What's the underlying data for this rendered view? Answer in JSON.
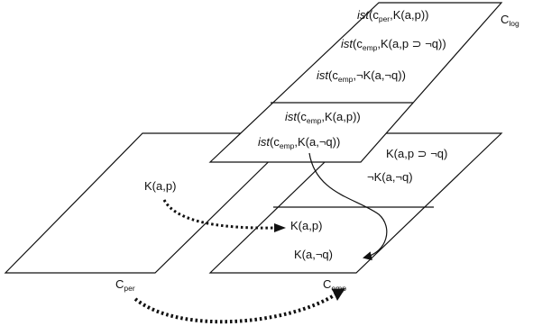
{
  "diagram": {
    "contexts": {
      "per": {
        "label": "C",
        "sub": "per"
      },
      "emp": {
        "label": "C",
        "sub": "emp"
      },
      "log": {
        "label": "C",
        "sub": "log"
      }
    },
    "log_formulas": [
      {
        "fn": "ist",
        "open": "(c",
        "sub": "per",
        "rest": ",K(a,p))"
      },
      {
        "fn": "ist",
        "open": "(c",
        "sub": "emp",
        "rest": ",K(a,p ⊃ ¬q))"
      },
      {
        "fn": "ist",
        "open": "(c",
        "sub": "emp",
        "rest": ",¬K(a,¬q))"
      },
      {
        "fn": "ist",
        "open": "(c",
        "sub": "emp",
        "rest": ",K(a,p))"
      },
      {
        "fn": "ist",
        "open": "(c",
        "sub": "emp",
        "rest": ",K(a,¬q))"
      }
    ],
    "per_formulas": [
      "K(a,p)"
    ],
    "emp_upper_formulas": [
      "K(a,p ⊃ ¬q)",
      "¬K(a,¬q)"
    ],
    "emp_lower_formulas": [
      "K(a,p)",
      "K(a,¬q)"
    ]
  }
}
